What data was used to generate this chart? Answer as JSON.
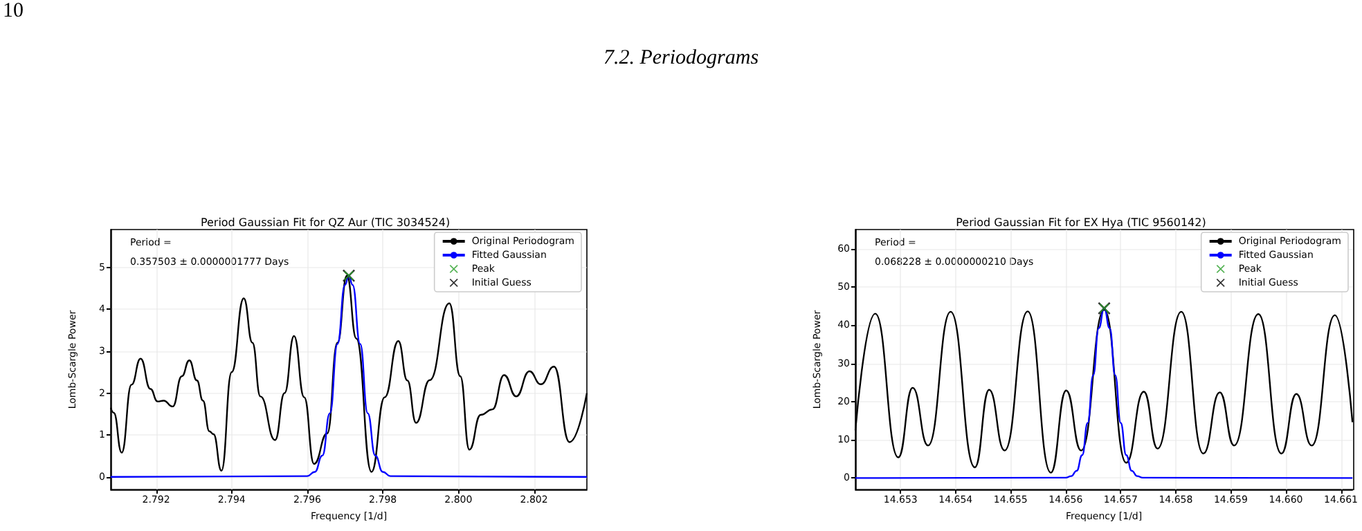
{
  "chart_data": [
    {
      "type": "other",
      "annotations": [
        "10",
        "7.2. Periodograms"
      ]
    },
    {
      "type": "line",
      "title": "Period Gaussian Fit for QZ Aur (TIC 3034524)",
      "xlabel": "Frequency [1/d]",
      "ylabel": "Lomb-Scargle Power",
      "xlim": [
        2.7908,
        2.8034
      ],
      "xticks": [
        2.792,
        2.794,
        2.796,
        2.798,
        {
          "value": 2.8,
          "label": "2.800"
        },
        2.802
      ],
      "ylim": [
        -0.3,
        5.9
      ],
      "yticks": [
        0,
        1,
        2,
        3,
        4,
        5
      ],
      "grid": true,
      "legend": "top right",
      "marker": "none",
      "annotations": [
        "Period =",
        "0.357503 ± 0.0000001777 Days"
      ],
      "series": [
        {
          "name": "Original Periodogram",
          "color": "#000000",
          "x": [
            2.7908,
            2.79088,
            2.79109,
            2.79135,
            2.79159,
            2.79185,
            2.79204,
            2.7922,
            2.79244,
            2.79268,
            2.79288,
            2.79308,
            2.79324,
            2.79341,
            2.79352,
            2.79373,
            2.794,
            2.79432,
            2.79455,
            2.79476,
            2.79515,
            2.7954,
            2.79565,
            2.79592,
            2.79618,
            2.79653,
            2.7968,
            2.79705,
            2.7973,
            2.7977,
            2.79805,
            2.79841,
            2.79865,
            2.79888,
            2.79924,
            2.79976,
            2.80005,
            2.80029,
            2.80059,
            2.8009,
            2.80121,
            2.80153,
            2.80188,
            2.80218,
            2.80253,
            2.80294,
            2.8034
          ],
          "values": [
            1.65,
            1.53,
            0.58,
            2.2,
            2.82,
            2.1,
            1.8,
            1.82,
            1.68,
            2.4,
            2.78,
            2.3,
            1.82,
            1.09,
            1.02,
            0.15,
            2.5,
            4.26,
            3.2,
            1.92,
            0.88,
            2.0,
            3.36,
            1.9,
            0.31,
            1.04,
            3.2,
            4.8,
            3.3,
            0.12,
            1.9,
            3.24,
            2.3,
            1.29,
            2.31,
            4.14,
            2.4,
            0.65,
            1.48,
            1.61,
            2.43,
            1.92,
            2.52,
            2.21,
            2.63,
            0.83,
            2.0
          ]
        },
        {
          "name": "Fitted Gaussian",
          "color": "#0000ff",
          "x": [
            2.7908,
            2.796,
            2.7962,
            2.7964,
            2.7966,
            2.7968,
            2.797,
            2.7971,
            2.7972,
            2.7974,
            2.7976,
            2.7978,
            2.798,
            2.7982,
            2.8034
          ],
          "values": [
            0,
            0.02,
            0.12,
            0.51,
            1.52,
            3.17,
            4.58,
            4.8,
            4.58,
            3.17,
            1.52,
            0.51,
            0.12,
            0.02,
            0
          ]
        },
        {
          "name": "Peak",
          "type": "scatter",
          "marker": "cross",
          "color": "#2ca02c",
          "x": [
            2.7971
          ],
          "values": [
            4.8
          ]
        },
        {
          "name": "Initial Guess",
          "type": "scatter",
          "marker": "cross",
          "color": "#000000",
          "x": [
            2.7971
          ],
          "values": [
            4.8
          ]
        }
      ]
    },
    {
      "type": "line",
      "title": "Period Gaussian Fit for EX Hya (TIC 9560142)",
      "xlabel": "Frequency [1/d]",
      "ylabel": "Lomb-Scargle Power",
      "xlim": [
        14.65218,
        14.66121
      ],
      "xticks": [
        14.653,
        14.654,
        14.655,
        14.656,
        14.657,
        14.658,
        14.659,
        {
          "value": 14.66,
          "label": "14.660"
        },
        14.661
      ],
      "ylim": [
        -3,
        65
      ],
      "yticks": [
        0,
        10,
        20,
        30,
        40,
        50,
        60
      ],
      "grid": true,
      "legend": "top right",
      "marker": "none",
      "annotations": [
        "Period =",
        "0.068228 ± 0.0000000210 Days"
      ],
      "series": [
        {
          "name": "Original Periodogram",
          "color": "#000000",
          "x": [
            14.65218,
            14.65254,
            14.65296,
            14.65322,
            14.6535,
            14.65391,
            14.65435,
            14.65461,
            14.65489,
            14.65531,
            14.65573,
            14.65601,
            14.65628,
            14.6567,
            14.6571,
            14.65742,
            14.65767,
            14.6581,
            14.6585,
            14.6588,
            14.65906,
            14.6595,
            14.65992,
            14.66019,
            14.66047,
            14.66089,
            14.66121
          ],
          "values": [
            12.5,
            43.0,
            5.4,
            23.6,
            8.5,
            43.5,
            2.8,
            23.1,
            7.2,
            43.6,
            1.4,
            22.9,
            7.2,
            44.0,
            4.0,
            22.6,
            7.7,
            43.5,
            6.4,
            22.4,
            8.5,
            42.9,
            6.4,
            22.0,
            8.5,
            42.6,
            14.6
          ]
        },
        {
          "name": "Fitted Gaussian",
          "color": "#0000ff",
          "x": [
            14.65218,
            14.656,
            14.6561,
            14.6562,
            14.6563,
            14.6564,
            14.6565,
            14.6566,
            14.6567,
            14.6568,
            14.6569,
            14.657,
            14.6571,
            14.6572,
            14.6573,
            14.6574,
            14.66121
          ],
          "values": [
            0,
            0.1,
            0.5,
            1.9,
            6.0,
            14.4,
            26.9,
            39.2,
            44.4,
            39.2,
            26.9,
            14.4,
            6.0,
            1.9,
            0.5,
            0.1,
            0
          ]
        },
        {
          "name": "Peak",
          "type": "scatter",
          "marker": "cross",
          "color": "#2ca02c",
          "x": [
            14.6567
          ],
          "values": [
            44.4
          ]
        },
        {
          "name": "Initial Guess",
          "type": "scatter",
          "marker": "cross",
          "color": "#000000",
          "x": [
            14.6567
          ],
          "values": [
            44.4
          ]
        }
      ]
    }
  ]
}
